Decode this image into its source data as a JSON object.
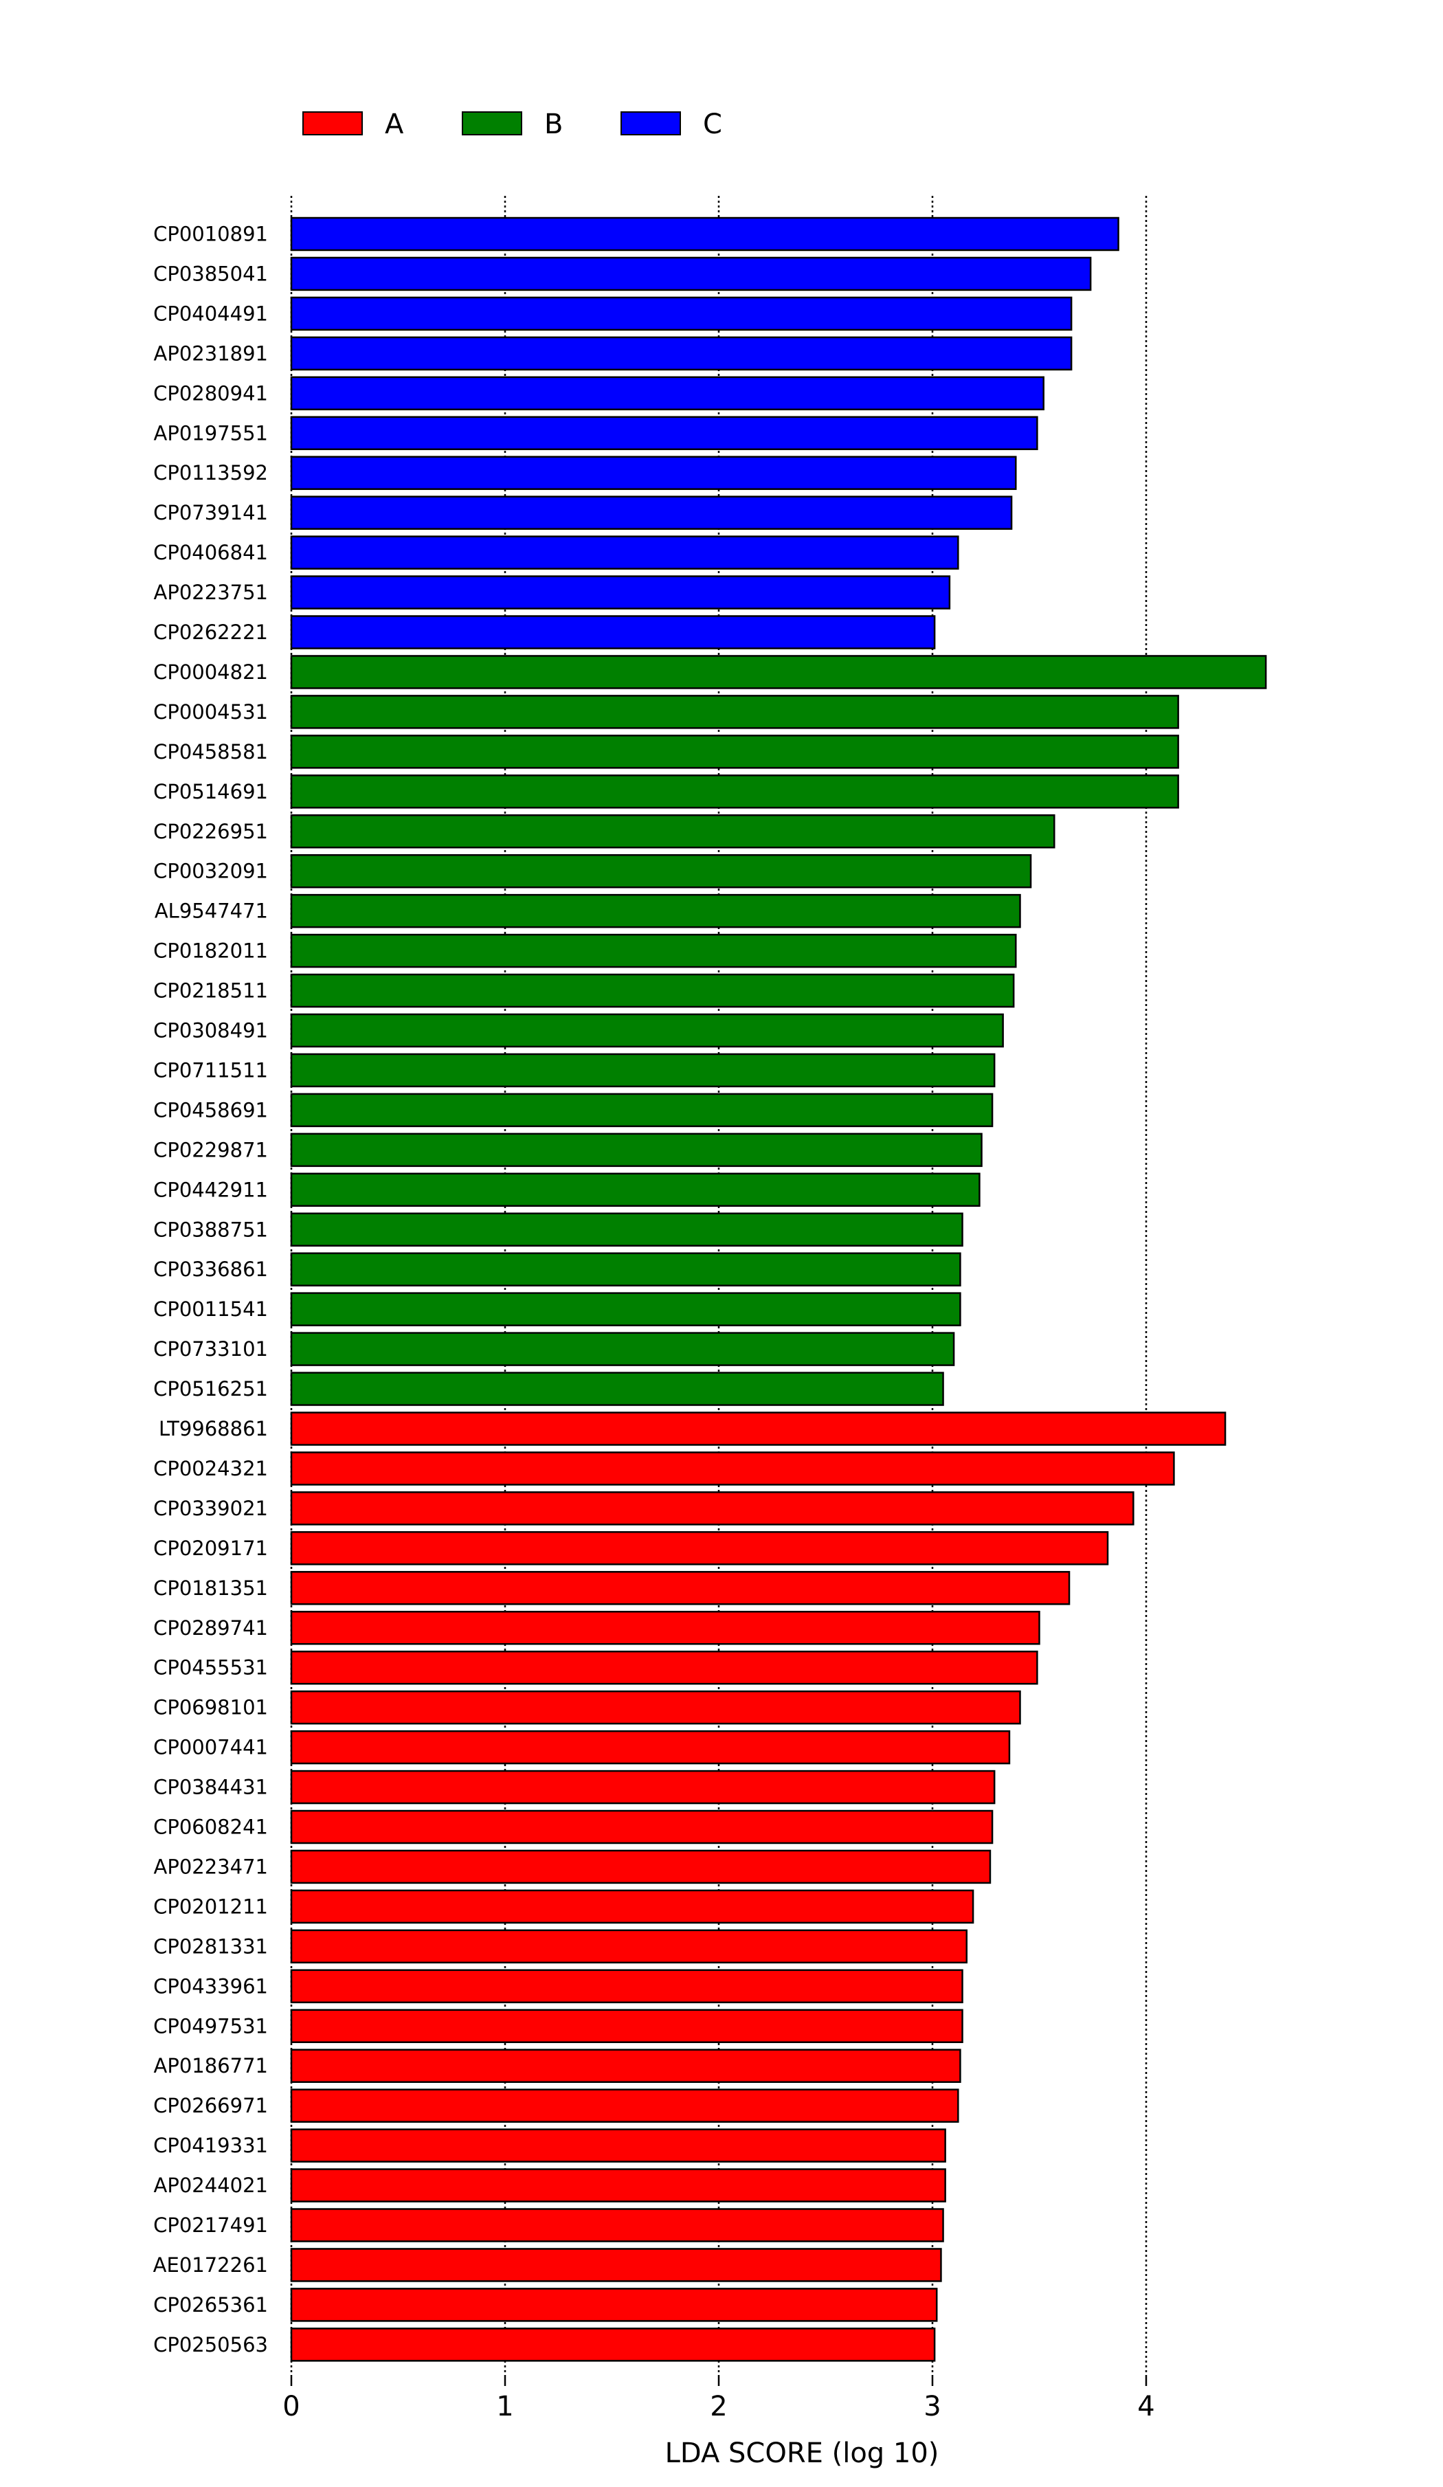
{
  "chart_data": {
    "type": "bar",
    "orientation": "horizontal",
    "xlabel": "LDA SCORE (log 10)",
    "ylabel": "",
    "title": "",
    "xlim": [
      0,
      4.7
    ],
    "xticks": [
      0,
      1,
      2,
      3,
      4
    ],
    "grid": "vertical dotted at x ticks",
    "legend_position": "top-left",
    "legend": [
      {
        "name": "A",
        "color": "#ff0000"
      },
      {
        "name": "B",
        "color": "#008000"
      },
      {
        "name": "C",
        "color": "#0000ff"
      }
    ],
    "bars": [
      {
        "label": "CP0010891",
        "value": 3.87,
        "group": "C"
      },
      {
        "label": "CP0385041",
        "value": 3.74,
        "group": "C"
      },
      {
        "label": "CP0404491",
        "value": 3.65,
        "group": "C"
      },
      {
        "label": "AP0231891",
        "value": 3.65,
        "group": "C"
      },
      {
        "label": "CP0280941",
        "value": 3.52,
        "group": "C"
      },
      {
        "label": "AP0197551",
        "value": 3.49,
        "group": "C"
      },
      {
        "label": "CP0113592",
        "value": 3.39,
        "group": "C"
      },
      {
        "label": "CP0739141",
        "value": 3.37,
        "group": "C"
      },
      {
        "label": "CP0406841",
        "value": 3.12,
        "group": "C"
      },
      {
        "label": "AP0223751",
        "value": 3.08,
        "group": "C"
      },
      {
        "label": "CP0262221",
        "value": 3.01,
        "group": "C"
      },
      {
        "label": "CP0004821",
        "value": 4.56,
        "group": "B"
      },
      {
        "label": "CP0004531",
        "value": 4.15,
        "group": "B"
      },
      {
        "label": "CP0458581",
        "value": 4.15,
        "group": "B"
      },
      {
        "label": "CP0514691",
        "value": 4.15,
        "group": "B"
      },
      {
        "label": "CP0226951",
        "value": 3.57,
        "group": "B"
      },
      {
        "label": "CP0032091",
        "value": 3.46,
        "group": "B"
      },
      {
        "label": "AL9547471",
        "value": 3.41,
        "group": "B"
      },
      {
        "label": "CP0182011",
        "value": 3.39,
        "group": "B"
      },
      {
        "label": "CP0218511",
        "value": 3.38,
        "group": "B"
      },
      {
        "label": "CP0308491",
        "value": 3.33,
        "group": "B"
      },
      {
        "label": "CP0711511",
        "value": 3.29,
        "group": "B"
      },
      {
        "label": "CP0458691",
        "value": 3.28,
        "group": "B"
      },
      {
        "label": "CP0229871",
        "value": 3.23,
        "group": "B"
      },
      {
        "label": "CP0442911",
        "value": 3.22,
        "group": "B"
      },
      {
        "label": "CP0388751",
        "value": 3.14,
        "group": "B"
      },
      {
        "label": "CP0336861",
        "value": 3.13,
        "group": "B"
      },
      {
        "label": "CP0011541",
        "value": 3.13,
        "group": "B"
      },
      {
        "label": "CP0733101",
        "value": 3.1,
        "group": "B"
      },
      {
        "label": "CP0516251",
        "value": 3.05,
        "group": "B"
      },
      {
        "label": "LT9968861",
        "value": 4.37,
        "group": "A"
      },
      {
        "label": "CP0024321",
        "value": 4.13,
        "group": "A"
      },
      {
        "label": "CP0339021",
        "value": 3.94,
        "group": "A"
      },
      {
        "label": "CP0209171",
        "value": 3.82,
        "group": "A"
      },
      {
        "label": "CP0181351",
        "value": 3.64,
        "group": "A"
      },
      {
        "label": "CP0289741",
        "value": 3.5,
        "group": "A"
      },
      {
        "label": "CP0455531",
        "value": 3.49,
        "group": "A"
      },
      {
        "label": "CP0698101",
        "value": 3.41,
        "group": "A"
      },
      {
        "label": "CP0007441",
        "value": 3.36,
        "group": "A"
      },
      {
        "label": "CP0384431",
        "value": 3.29,
        "group": "A"
      },
      {
        "label": "CP0608241",
        "value": 3.28,
        "group": "A"
      },
      {
        "label": "AP0223471",
        "value": 3.27,
        "group": "A"
      },
      {
        "label": "CP0201211",
        "value": 3.19,
        "group": "A"
      },
      {
        "label": "CP0281331",
        "value": 3.16,
        "group": "A"
      },
      {
        "label": "CP0433961",
        "value": 3.14,
        "group": "A"
      },
      {
        "label": "CP0497531",
        "value": 3.14,
        "group": "A"
      },
      {
        "label": "AP0186771",
        "value": 3.13,
        "group": "A"
      },
      {
        "label": "CP0266971",
        "value": 3.12,
        "group": "A"
      },
      {
        "label": "CP0419331",
        "value": 3.06,
        "group": "A"
      },
      {
        "label": "AP0244021",
        "value": 3.06,
        "group": "A"
      },
      {
        "label": "CP0217491",
        "value": 3.05,
        "group": "A"
      },
      {
        "label": "AE0172261",
        "value": 3.04,
        "group": "A"
      },
      {
        "label": "CP0265361",
        "value": 3.02,
        "group": "A"
      },
      {
        "label": "CP0250563",
        "value": 3.01,
        "group": "A"
      }
    ]
  }
}
